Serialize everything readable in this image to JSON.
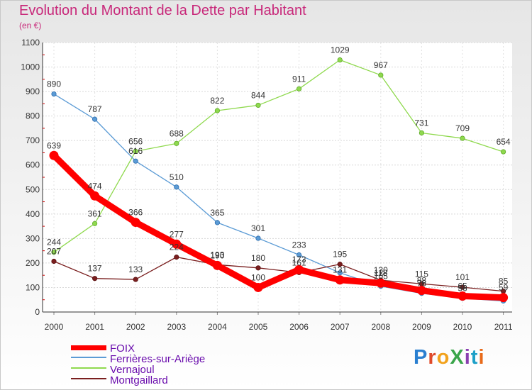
{
  "title": "Evolution du Montant de la Dette par Habitant",
  "subtitle": "(en €)",
  "brand": {
    "text": "ProXiti",
    "letters": [
      "P",
      "r",
      "o",
      "X",
      "i",
      "t",
      "i"
    ],
    "colors": [
      "#2a7fd0",
      "#e04a2a",
      "#f2a21d",
      "#3aa54a",
      "#8a3fb0",
      "#1ea0c8",
      "#e86a1a"
    ]
  },
  "chart_data": {
    "type": "line",
    "title": "Evolution du Montant de la Dette par Habitant",
    "subtitle": "(en €)",
    "x": [
      "2000",
      "2001",
      "2002",
      "2003",
      "2004",
      "2005",
      "2006",
      "2007",
      "2008",
      "2009",
      "2010",
      "2011"
    ],
    "ylim": [
      0,
      1100
    ],
    "yticks": [
      "0",
      "100",
      "200",
      "300",
      "400",
      "500",
      "600",
      "700",
      "800",
      "900",
      "1000",
      "1100"
    ],
    "grid": true,
    "legend_position": "bottom-left",
    "series": [
      {
        "name": "FOIX",
        "color": "#ff0000",
        "values": [
          639,
          474,
          366,
          277,
          190,
          100,
          173,
          131,
          118,
          88,
          65,
          59
        ],
        "labels": [
          "639",
          "474",
          "366",
          "277",
          "190",
          "100",
          "173",
          "131",
          "118",
          "88",
          "65",
          "59"
        ]
      },
      {
        "name": "Ferrières-sur-Ariège",
        "color": "#5b9bd5",
        "values": [
          890,
          787,
          616,
          510,
          365,
          301,
          233,
          160,
          105,
          76,
          56,
          45
        ],
        "labels": [
          "890",
          "787",
          "616",
          "510",
          "365",
          "301",
          "233",
          "",
          "105",
          "76",
          "56",
          ""
        ]
      },
      {
        "name": "Vernajoul",
        "color": "#8fd94e",
        "values": [
          244,
          361,
          656,
          688,
          822,
          844,
          911,
          1029,
          967,
          731,
          709,
          654
        ],
        "labels": [
          "244",
          "361",
          "656",
          "688",
          "822",
          "844",
          "911",
          "1029",
          "967",
          "731",
          "709",
          "654"
        ]
      },
      {
        "name": "Montgaillard",
        "color": "#7a1f1f",
        "values": [
          207,
          137,
          133,
          224,
          193,
          180,
          161,
          195,
          130,
          115,
          101,
          85
        ],
        "labels": [
          "207",
          "137",
          "133",
          "224",
          "193",
          "180",
          "161",
          "195",
          "130",
          "115",
          "101",
          "85"
        ]
      }
    ]
  }
}
